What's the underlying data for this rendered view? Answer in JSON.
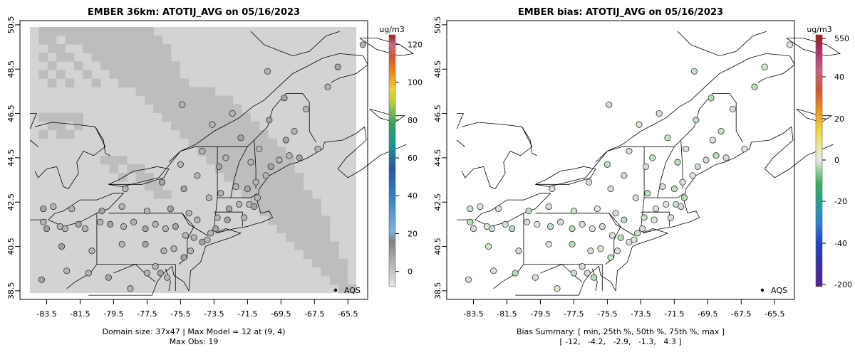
{
  "chart_data": [
    {
      "type": "heatmap",
      "title": "EMBER 36km: ATOTIJ_AVG on 05/16/2023",
      "x_ticks": [
        "-83.5",
        "-81.5",
        "-79.5",
        "-77.5",
        "-75.5",
        "-73.5",
        "-71.5",
        "-69.5",
        "-67.5",
        "-65.5"
      ],
      "y_ticks": [
        "38.5",
        "40.5",
        "42.5",
        "44.5",
        "46.5",
        "48.5",
        "50.5"
      ],
      "xlim": [
        -84.5,
        -65.0
      ],
      "ylim": [
        38.4,
        50.4
      ],
      "colorbar": {
        "label": "ug/m3",
        "ticks": [
          "0",
          "20",
          "40",
          "60",
          "80",
          "100",
          "120"
        ],
        "range": [
          -8,
          125
        ]
      },
      "legend": "AQS",
      "footer": [
        "Domain size: 37x47 | Max Model = 12 at (9, 4)",
        "Max Obs: 19"
      ]
    },
    {
      "type": "scatter",
      "title": "EMBER bias: ATOTIJ_AVG on 05/16/2023",
      "x_ticks": [
        "-83.5",
        "-81.5",
        "-79.5",
        "-77.5",
        "-75.5",
        "-73.5",
        "-71.5",
        "-69.5",
        "-67.5",
        "-65.5"
      ],
      "y_ticks": [
        "38.5",
        "40.5",
        "42.5",
        "44.5",
        "46.5",
        "48.5",
        "50.5"
      ],
      "xlim": [
        -84.5,
        -65.0
      ],
      "ylim": [
        38.4,
        50.4
      ],
      "colorbar": {
        "label": "ug/m3",
        "ticks": [
          "-200",
          "-40",
          "-20",
          "0",
          "20",
          "40",
          "550"
        ],
        "range": [
          -210,
          560
        ]
      },
      "legend": "AQS",
      "footer": [
        "Bias Summary: [ min, 25th %, 50th %, 75th %, max ]",
        "[ -12,   -4.2,   -2.9,   -1.3,   4.3 ]"
      ]
    }
  ],
  "stations": [
    [
      -83.8,
      39.0
    ],
    [
      -82.3,
      39.4
    ],
    [
      -81.0,
      39.3
    ],
    [
      -79.8,
      39.1
    ],
    [
      -78.5,
      38.6
    ],
    [
      -77.5,
      39.3
    ],
    [
      -76.7,
      39.3
    ],
    [
      -76.3,
      39.1
    ],
    [
      -77.0,
      39.6
    ],
    [
      -82.6,
      40.5
    ],
    [
      -80.8,
      40.3
    ],
    [
      -79.0,
      40.6
    ],
    [
      -77.6,
      40.6
    ],
    [
      -76.5,
      40.3
    ],
    [
      -75.9,
      40.4
    ],
    [
      -75.3,
      40.0
    ],
    [
      -74.9,
      40.3
    ],
    [
      -83.7,
      41.6
    ],
    [
      -83.5,
      41.3
    ],
    [
      -82.7,
      41.4
    ],
    [
      -82.4,
      41.3
    ],
    [
      -81.6,
      41.5
    ],
    [
      -81.2,
      41.3
    ],
    [
      -80.3,
      41.6
    ],
    [
      -79.7,
      41.5
    ],
    [
      -78.9,
      41.4
    ],
    [
      -78.3,
      41.6
    ],
    [
      -77.6,
      41.3
    ],
    [
      -77.0,
      41.5
    ],
    [
      -76.4,
      41.3
    ],
    [
      -75.8,
      41.4
    ],
    [
      -75.2,
      41.0
    ],
    [
      -74.7,
      40.9
    ],
    [
      -74.2,
      40.7
    ],
    [
      -73.9,
      40.8
    ],
    [
      -73.7,
      41.1
    ],
    [
      -73.4,
      41.3
    ],
    [
      -74.5,
      41.7
    ],
    [
      -75.0,
      42.0
    ],
    [
      -76.1,
      42.2
    ],
    [
      -77.5,
      42.1
    ],
    [
      -79.0,
      42.3
    ],
    [
      -80.2,
      42.1
    ],
    [
      -82.0,
      42.2
    ],
    [
      -83.1,
      42.3
    ],
    [
      -83.7,
      42.2
    ],
    [
      -73.8,
      42.7
    ],
    [
      -73.1,
      42.9
    ],
    [
      -72.6,
      42.2
    ],
    [
      -72.0,
      42.4
    ],
    [
      -71.4,
      42.4
    ],
    [
      -71.1,
      42.3
    ],
    [
      -70.9,
      42.7
    ],
    [
      -71.7,
      41.8
    ],
    [
      -72.7,
      41.7
    ],
    [
      -73.3,
      41.8
    ],
    [
      -72.2,
      43.2
    ],
    [
      -71.5,
      43.1
    ],
    [
      -71.0,
      43.4
    ],
    [
      -70.4,
      43.7
    ],
    [
      -70.1,
      44.1
    ],
    [
      -69.6,
      44.4
    ],
    [
      -69.0,
      44.6
    ],
    [
      -68.4,
      44.5
    ],
    [
      -67.3,
      44.9
    ],
    [
      -72.8,
      44.5
    ],
    [
      -73.2,
      44.1
    ],
    [
      -71.3,
      44.3
    ],
    [
      -70.8,
      44.9
    ],
    [
      -69.2,
      45.3
    ],
    [
      -68.7,
      45.7
    ],
    [
      -68.0,
      46.7
    ],
    [
      -70.2,
      46.2
    ],
    [
      -72.4,
      46.5
    ],
    [
      -73.6,
      46.0
    ],
    [
      -71.9,
      45.4
    ],
    [
      -74.2,
      44.8
    ],
    [
      -75.5,
      44.2
    ],
    [
      -76.6,
      43.4
    ],
    [
      -78.8,
      43.1
    ],
    [
      -74.5,
      43.7
    ],
    [
      -75.3,
      43.1
    ],
    [
      -66.7,
      47.7
    ],
    [
      -64.6,
      49.6
    ],
    [
      -66.1,
      48.6
    ],
    [
      -70.3,
      48.4
    ],
    [
      -75.4,
      46.9
    ],
    [
      -69.3,
      47.2
    ]
  ],
  "gray_cells": [
    [
      1,
      0
    ],
    [
      2,
      0
    ],
    [
      3,
      0
    ],
    [
      4,
      0
    ],
    [
      5,
      0
    ],
    [
      6,
      0
    ],
    [
      7,
      0
    ],
    [
      8,
      0
    ],
    [
      9,
      0
    ],
    [
      10,
      0
    ],
    [
      11,
      0
    ],
    [
      12,
      0
    ],
    [
      13,
      0
    ],
    [
      1,
      1
    ],
    [
      2,
      1
    ],
    [
      4,
      1
    ],
    [
      5,
      1
    ],
    [
      6,
      1
    ],
    [
      7,
      1
    ],
    [
      8,
      1
    ],
    [
      9,
      1
    ],
    [
      10,
      1
    ],
    [
      11,
      1
    ],
    [
      12,
      1
    ],
    [
      13,
      1
    ],
    [
      14,
      1
    ],
    [
      2,
      2
    ],
    [
      3,
      2
    ],
    [
      6,
      2
    ],
    [
      7,
      2
    ],
    [
      8,
      2
    ],
    [
      9,
      2
    ],
    [
      10,
      2
    ],
    [
      11,
      2
    ],
    [
      12,
      2
    ],
    [
      13,
      2
    ],
    [
      14,
      2
    ],
    [
      15,
      2
    ],
    [
      1,
      3
    ],
    [
      3,
      3
    ],
    [
      4,
      3
    ],
    [
      7,
      3
    ],
    [
      8,
      3
    ],
    [
      9,
      3
    ],
    [
      10,
      3
    ],
    [
      11,
      3
    ],
    [
      12,
      3
    ],
    [
      13,
      3
    ],
    [
      14,
      3
    ],
    [
      15,
      3
    ],
    [
      2,
      4
    ],
    [
      5,
      4
    ],
    [
      8,
      4
    ],
    [
      9,
      4
    ],
    [
      10,
      4
    ],
    [
      11,
      4
    ],
    [
      12,
      4
    ],
    [
      13,
      4
    ],
    [
      14,
      4
    ],
    [
      15,
      4
    ],
    [
      16,
      4
    ],
    [
      1,
      5
    ],
    [
      3,
      5
    ],
    [
      6,
      5
    ],
    [
      9,
      5
    ],
    [
      10,
      5
    ],
    [
      11,
      5
    ],
    [
      12,
      5
    ],
    [
      13,
      5
    ],
    [
      14,
      5
    ],
    [
      15,
      5
    ],
    [
      16,
      5
    ],
    [
      2,
      6
    ],
    [
      4,
      6
    ],
    [
      7,
      6
    ],
    [
      10,
      6
    ],
    [
      11,
      6
    ],
    [
      12,
      6
    ],
    [
      13,
      6
    ],
    [
      14,
      6
    ],
    [
      15,
      6
    ],
    [
      16,
      6
    ],
    [
      17,
      6
    ],
    [
      12,
      7
    ],
    [
      13,
      7
    ],
    [
      14,
      7
    ],
    [
      15,
      7
    ],
    [
      16,
      7
    ],
    [
      17,
      7
    ],
    [
      18,
      7
    ],
    [
      19,
      7
    ],
    [
      20,
      7
    ],
    [
      13,
      8
    ],
    [
      14,
      8
    ],
    [
      15,
      8
    ],
    [
      16,
      8
    ],
    [
      17,
      8
    ],
    [
      18,
      8
    ],
    [
      19,
      8
    ],
    [
      20,
      8
    ],
    [
      21,
      8
    ],
    [
      22,
      8
    ],
    [
      14,
      9
    ],
    [
      15,
      9
    ],
    [
      16,
      9
    ],
    [
      17,
      9
    ],
    [
      18,
      9
    ],
    [
      19,
      9
    ],
    [
      20,
      9
    ],
    [
      21,
      9
    ],
    [
      22,
      9
    ],
    [
      23,
      9
    ],
    [
      1,
      10
    ],
    [
      2,
      10
    ],
    [
      3,
      10
    ],
    [
      4,
      10
    ],
    [
      5,
      10
    ],
    [
      15,
      10
    ],
    [
      16,
      10
    ],
    [
      17,
      10
    ],
    [
      18,
      10
    ],
    [
      19,
      10
    ],
    [
      20,
      10
    ],
    [
      21,
      10
    ],
    [
      22,
      10
    ],
    [
      23,
      10
    ],
    [
      24,
      10
    ],
    [
      2,
      11
    ],
    [
      3,
      11
    ],
    [
      5,
      11
    ],
    [
      16,
      11
    ],
    [
      17,
      11
    ],
    [
      18,
      11
    ],
    [
      19,
      11
    ],
    [
      20,
      11
    ],
    [
      21,
      11
    ],
    [
      22,
      11
    ],
    [
      23,
      11
    ],
    [
      24,
      11
    ],
    [
      25,
      11
    ],
    [
      1,
      12
    ],
    [
      3,
      12
    ],
    [
      4,
      12
    ],
    [
      17,
      12
    ],
    [
      18,
      12
    ],
    [
      19,
      12
    ],
    [
      20,
      12
    ],
    [
      21,
      12
    ],
    [
      22,
      12
    ],
    [
      23,
      12
    ],
    [
      24,
      12
    ],
    [
      25,
      12
    ],
    [
      26,
      12
    ],
    [
      18,
      13
    ],
    [
      19,
      13
    ],
    [
      20,
      13
    ],
    [
      21,
      13
    ],
    [
      22,
      13
    ],
    [
      23,
      13
    ],
    [
      24,
      13
    ],
    [
      25,
      13
    ],
    [
      26,
      13
    ],
    [
      27,
      13
    ],
    [
      19,
      14
    ],
    [
      20,
      14
    ],
    [
      21,
      14
    ],
    [
      22,
      14
    ],
    [
      23,
      14
    ],
    [
      24,
      14
    ],
    [
      25,
      14
    ],
    [
      26,
      14
    ],
    [
      27,
      14
    ],
    [
      28,
      14
    ],
    [
      8,
      15
    ],
    [
      9,
      15
    ],
    [
      10,
      15
    ],
    [
      20,
      15
    ],
    [
      21,
      15
    ],
    [
      22,
      15
    ],
    [
      23,
      15
    ],
    [
      24,
      15
    ],
    [
      25,
      15
    ],
    [
      26,
      15
    ],
    [
      27,
      15
    ],
    [
      28,
      15
    ],
    [
      29,
      15
    ],
    [
      9,
      16
    ],
    [
      11,
      16
    ],
    [
      12,
      16
    ],
    [
      21,
      16
    ],
    [
      22,
      16
    ],
    [
      23,
      16
    ],
    [
      24,
      16
    ],
    [
      25,
      16
    ],
    [
      26,
      16
    ],
    [
      27,
      16
    ],
    [
      28,
      16
    ],
    [
      29,
      16
    ],
    [
      10,
      17
    ],
    [
      12,
      17
    ],
    [
      13,
      17
    ],
    [
      22,
      17
    ],
    [
      23,
      17
    ],
    [
      24,
      17
    ],
    [
      25,
      17
    ],
    [
      26,
      17
    ],
    [
      27,
      17
    ],
    [
      28,
      17
    ],
    [
      29,
      17
    ],
    [
      30,
      17
    ],
    [
      13,
      18
    ],
    [
      14,
      18
    ],
    [
      23,
      18
    ],
    [
      24,
      18
    ],
    [
      25,
      18
    ],
    [
      26,
      18
    ],
    [
      27,
      18
    ],
    [
      28,
      18
    ],
    [
      29,
      18
    ],
    [
      30,
      18
    ],
    [
      14,
      19
    ],
    [
      15,
      19
    ],
    [
      24,
      19
    ],
    [
      25,
      19
    ],
    [
      26,
      19
    ],
    [
      27,
      19
    ],
    [
      28,
      19
    ],
    [
      29,
      19
    ],
    [
      30,
      19
    ],
    [
      31,
      19
    ],
    [
      25,
      20
    ],
    [
      26,
      20
    ],
    [
      27,
      20
    ],
    [
      28,
      20
    ],
    [
      29,
      20
    ],
    [
      30,
      20
    ],
    [
      31,
      20
    ],
    [
      32,
      20
    ],
    [
      26,
      21
    ],
    [
      27,
      21
    ],
    [
      28,
      21
    ],
    [
      29,
      21
    ],
    [
      30,
      21
    ],
    [
      31,
      21
    ],
    [
      32,
      21
    ],
    [
      27,
      22
    ],
    [
      28,
      22
    ],
    [
      29,
      22
    ],
    [
      30,
      22
    ],
    [
      31,
      22
    ],
    [
      32,
      22
    ],
    [
      33,
      22
    ],
    [
      28,
      23
    ],
    [
      29,
      23
    ],
    [
      30,
      23
    ],
    [
      31,
      23
    ],
    [
      32,
      23
    ],
    [
      33,
      23
    ],
    [
      29,
      24
    ],
    [
      30,
      24
    ],
    [
      31,
      24
    ],
    [
      32,
      24
    ],
    [
      33,
      24
    ],
    [
      30,
      25
    ],
    [
      31,
      25
    ],
    [
      32,
      25
    ],
    [
      33,
      25
    ],
    [
      34,
      25
    ],
    [
      31,
      26
    ],
    [
      32,
      26
    ],
    [
      33,
      26
    ],
    [
      34,
      26
    ],
    [
      32,
      27
    ],
    [
      33,
      27
    ],
    [
      34,
      27
    ],
    [
      35,
      27
    ],
    [
      33,
      28
    ],
    [
      34,
      28
    ],
    [
      35,
      28
    ],
    [
      34,
      29
    ],
    [
      35,
      29
    ],
    [
      35,
      30
    ],
    [
      36,
      30
    ]
  ]
}
